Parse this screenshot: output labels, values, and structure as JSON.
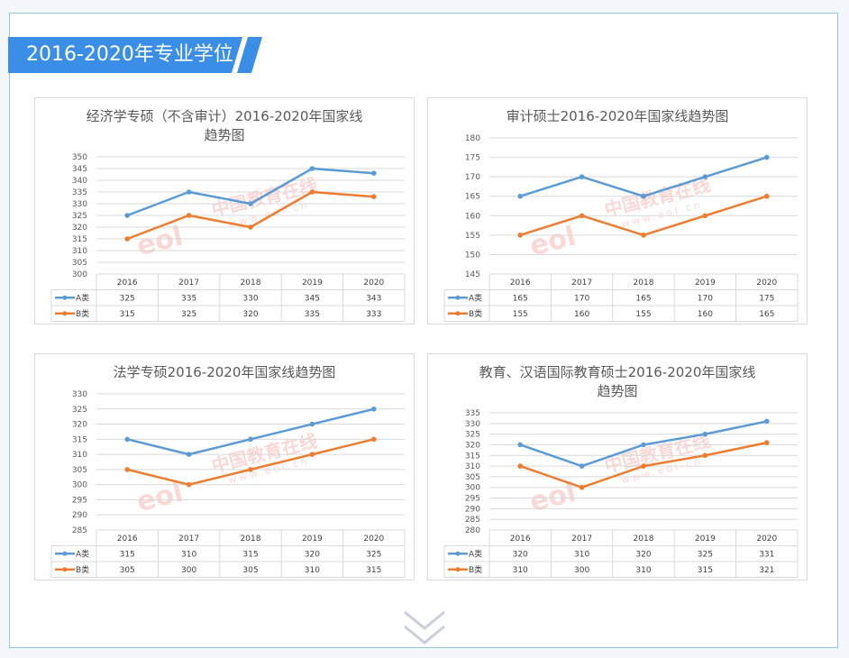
{
  "section": {
    "title": "2016-2020年专业学位"
  },
  "watermark": {
    "text": "中国教育在线",
    "domain": "www.eol.cn",
    "logo": "eol"
  },
  "colors": {
    "series_a": "#5b9bd5",
    "series_b": "#ed7d31",
    "accent": "#3a8ee6",
    "grid": "#d9d9d9"
  },
  "icons": {
    "scroll_down": "double-chevron-down-icon"
  },
  "charts": [
    {
      "title_lines": [
        "经济学专硕（不含审计）2016-2020年国家线",
        "趋势图"
      ],
      "chart_data": {
        "type": "line",
        "title": "经济学专硕（不含审计）2016-2020年国家线趋势图",
        "categories": [
          "2016",
          "2017",
          "2018",
          "2019",
          "2020"
        ],
        "series": [
          {
            "name": "A类",
            "values": [
              325,
              335,
              330,
              345,
              343
            ]
          },
          {
            "name": "B类",
            "values": [
              315,
              325,
              320,
              335,
              333
            ]
          }
        ],
        "ylim": [
          300,
          350
        ],
        "ystep": 5,
        "grid": true,
        "legend": "data table",
        "data_table": true
      }
    },
    {
      "title_lines": [
        "审计硕士2016-2020年国家线趋势图"
      ],
      "chart_data": {
        "type": "line",
        "title": "审计硕士2016-2020年国家线趋势图",
        "categories": [
          "2016",
          "2017",
          "2018",
          "2019",
          "2020"
        ],
        "series": [
          {
            "name": "A类",
            "values": [
              165,
              170,
              165,
              170,
              175
            ]
          },
          {
            "name": "B类",
            "values": [
              155,
              160,
              155,
              160,
              165
            ]
          }
        ],
        "ylim": [
          145,
          180
        ],
        "ystep": 5,
        "grid": true,
        "legend": "data table",
        "data_table": true
      }
    },
    {
      "title_lines": [
        "法学专硕2016-2020年国家线趋势图"
      ],
      "chart_data": {
        "type": "line",
        "title": "法学专硕2016-2020年国家线趋势图",
        "categories": [
          "2016",
          "2017",
          "2018",
          "2019",
          "2020"
        ],
        "series": [
          {
            "name": "A类",
            "values": [
              315,
              310,
              315,
              320,
              325
            ]
          },
          {
            "name": "B类",
            "values": [
              305,
              300,
              305,
              310,
              315
            ]
          }
        ],
        "ylim": [
          285,
          330
        ],
        "ystep": 5,
        "grid": true,
        "legend": "data table",
        "data_table": true
      }
    },
    {
      "title_lines": [
        "教育、汉语国际教育硕士2016-2020年国家线",
        "趋势图"
      ],
      "chart_data": {
        "type": "line",
        "title": "教育、汉语国际教育硕士2016-2020年国家线趋势图",
        "categories": [
          "2016",
          "2017",
          "2018",
          "2019",
          "2020"
        ],
        "series": [
          {
            "name": "A类",
            "values": [
              320,
              310,
              320,
              325,
              331
            ]
          },
          {
            "name": "B类",
            "values": [
              310,
              300,
              310,
              315,
              321
            ]
          }
        ],
        "ylim": [
          280,
          335
        ],
        "ystep": 5,
        "grid": true,
        "legend": "data table",
        "data_table": true
      }
    }
  ]
}
